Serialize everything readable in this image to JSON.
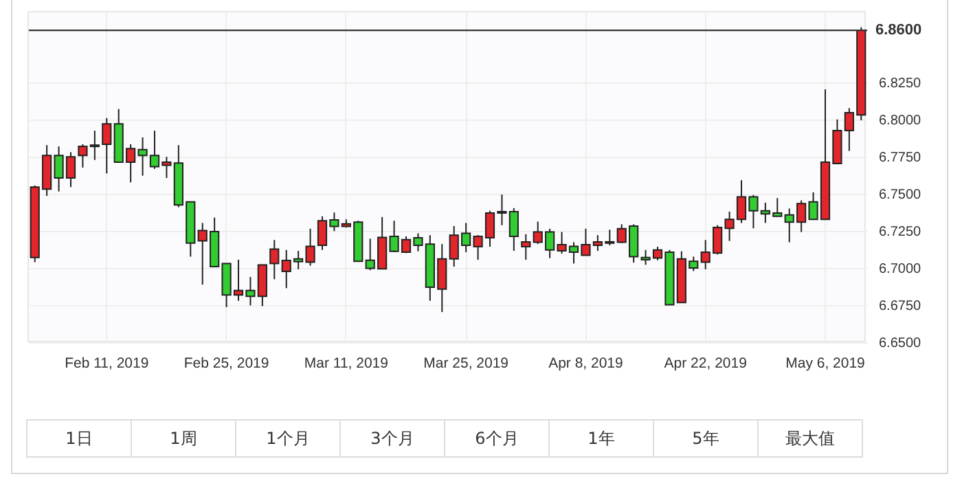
{
  "chart_data": {
    "type": "candlestick",
    "categories": [
      null,
      null,
      null,
      null,
      null,
      null,
      "Feb 11, 2019",
      null,
      null,
      null,
      null,
      null,
      null,
      null,
      null,
      null,
      "Feb 25, 2019",
      null,
      null,
      null,
      null,
      null,
      null,
      null,
      null,
      null,
      "Mar 11, 2019",
      null,
      null,
      null,
      null,
      null,
      null,
      null,
      null,
      null,
      "Mar 25, 2019",
      null,
      null,
      null,
      null,
      null,
      null,
      null,
      null,
      null,
      "Apr 8, 2019",
      null,
      null,
      null,
      null,
      null,
      null,
      null,
      null,
      null,
      "Apr 22, 2019",
      null,
      null,
      null,
      null,
      null,
      null,
      null,
      null,
      null,
      "May 6, 2019",
      null,
      null,
      null
    ],
    "ohlc": [
      [
        6.707,
        6.7555,
        6.7039,
        6.7545
      ],
      [
        6.753,
        6.7827,
        6.7485,
        6.7757
      ],
      [
        6.7757,
        6.7818,
        6.7515,
        6.7606
      ],
      [
        6.7606,
        6.7779,
        6.7545,
        6.7748
      ],
      [
        6.7757,
        6.7833,
        6.7676,
        6.7818
      ],
      [
        6.7818,
        6.7924,
        6.7727,
        6.7827
      ],
      [
        6.7833,
        6.8009,
        6.7636,
        6.797
      ],
      [
        6.797,
        6.807,
        6.7712,
        6.7712
      ],
      [
        6.7712,
        6.7833,
        6.7576,
        6.7803
      ],
      [
        6.7797,
        6.7879,
        6.7621,
        6.7757
      ],
      [
        6.7757,
        6.7924,
        6.7667,
        6.7682
      ],
      [
        6.7691,
        6.7748,
        6.7606,
        6.7712
      ],
      [
        6.7706,
        6.7827,
        6.7409,
        6.7424
      ],
      [
        6.7445,
        6.7445,
        6.7076,
        6.7167
      ],
      [
        6.7182,
        6.7303,
        6.6888,
        6.7252
      ],
      [
        6.7245,
        6.7339,
        6.7009,
        6.7009
      ],
      [
        6.703,
        6.703,
        6.6736,
        6.6818
      ],
      [
        6.6818,
        6.7055,
        6.6779,
        6.6848
      ],
      [
        6.6848,
        6.6939,
        6.6748,
        6.6809
      ],
      [
        6.6809,
        6.7021,
        6.6743,
        6.7021
      ],
      [
        6.703,
        6.7188,
        6.6924,
        6.7127
      ],
      [
        6.6976,
        6.7121,
        6.6864,
        6.7051
      ],
      [
        6.7061,
        6.7115,
        6.6991,
        6.7043
      ],
      [
        6.7039,
        6.7264,
        6.7015,
        6.7145
      ],
      [
        6.7152,
        6.7348,
        6.7121,
        6.7318
      ],
      [
        6.7324,
        6.7373,
        6.7248,
        6.7279
      ],
      [
        6.7279,
        6.7327,
        6.7273,
        6.7297
      ],
      [
        6.7309,
        6.7318,
        6.7045,
        6.7045
      ],
      [
        6.7052,
        6.7197,
        6.6985,
        6.6997
      ],
      [
        6.6994,
        6.7343,
        6.6991,
        6.7206
      ],
      [
        6.7212,
        6.7318,
        6.7106,
        6.7112
      ],
      [
        6.7106,
        6.7212,
        6.71,
        6.7191
      ],
      [
        6.7203,
        6.7233,
        6.7112,
        6.7152
      ],
      [
        6.7161,
        6.7221,
        6.6779,
        6.687
      ],
      [
        6.6857,
        6.7161,
        6.6703,
        6.7061
      ],
      [
        6.7061,
        6.7282,
        6.7009,
        6.7221
      ],
      [
        6.7233,
        6.7303,
        6.7106,
        6.7152
      ],
      [
        6.7143,
        6.7221,
        6.7055,
        6.7212
      ],
      [
        6.7203,
        6.7385,
        6.7143,
        6.737
      ],
      [
        6.737,
        6.7494,
        6.7288,
        6.7379
      ],
      [
        6.7379,
        6.7403,
        6.7115,
        6.7212
      ],
      [
        6.7143,
        6.7227,
        6.7055,
        6.7176
      ],
      [
        6.7173,
        6.7312,
        6.7161,
        6.7242
      ],
      [
        6.7242,
        6.7264,
        6.7066,
        6.7121
      ],
      [
        6.7115,
        6.7242,
        6.7097,
        6.7157
      ],
      [
        6.7145,
        6.7173,
        6.703,
        6.7106
      ],
      [
        6.7085,
        6.7264,
        6.7085,
        6.7157
      ],
      [
        6.7152,
        6.7221,
        6.7115,
        6.7176
      ],
      [
        6.7167,
        6.7257,
        6.7152,
        6.7176
      ],
      [
        6.7173,
        6.7294,
        6.7167,
        6.7264
      ],
      [
        6.7282,
        6.7294,
        6.7036,
        6.7076
      ],
      [
        6.707,
        6.7121,
        6.7021,
        6.7055
      ],
      [
        6.7067,
        6.7143,
        6.7052,
        6.7121
      ],
      [
        6.7106,
        6.7121,
        6.6752,
        6.6752
      ],
      [
        6.6767,
        6.7112,
        6.6767,
        6.7061
      ],
      [
        6.7045,
        6.7076,
        6.6979,
        6.7
      ],
      [
        6.7039,
        6.7188,
        6.6991,
        6.7106
      ],
      [
        6.71,
        6.7288,
        6.7091,
        6.7273
      ],
      [
        6.7267,
        6.7379,
        6.7182,
        6.7327
      ],
      [
        6.7327,
        6.7591,
        6.7303,
        6.7479
      ],
      [
        6.7479,
        6.7491,
        6.7267,
        6.7385
      ],
      [
        6.7385,
        6.7439,
        6.7303,
        6.7364
      ],
      [
        6.737,
        6.747,
        6.7348,
        6.7348
      ],
      [
        6.7357,
        6.74,
        6.7173,
        6.7309
      ],
      [
        6.7309,
        6.7455,
        6.7242,
        6.7433
      ],
      [
        6.7445,
        6.7509,
        6.7327,
        6.7327
      ],
      [
        6.7327,
        6.8203,
        6.7327,
        6.7712
      ],
      [
        6.7703,
        6.8,
        6.7703,
        6.7925
      ],
      [
        6.7925,
        6.8076,
        6.7788,
        6.8045
      ],
      [
        6.803,
        6.862,
        6.7994,
        6.86
      ]
    ],
    "colors": [
      "#e3262b",
      "#e3262b",
      "#33cc33",
      "#e3262b",
      "#e3262b",
      "#e3262b",
      "#e3262b",
      "#33cc33",
      "#e3262b",
      "#33cc33",
      "#33cc33",
      "#e3262b",
      "#33cc33",
      "#33cc33",
      "#e3262b",
      "#33cc33",
      "#33cc33",
      "#e3262b",
      "#33cc33",
      "#e3262b",
      "#e3262b",
      "#e3262b",
      "#33cc33",
      "#e3262b",
      "#e3262b",
      "#33cc33",
      "#e3262b",
      "#33cc33",
      "#33cc33",
      "#e3262b",
      "#33cc33",
      "#e3262b",
      "#33cc33",
      "#33cc33",
      "#e3262b",
      "#e3262b",
      "#33cc33",
      "#e3262b",
      "#e3262b",
      "#e3262b",
      "#33cc33",
      "#e3262b",
      "#e3262b",
      "#33cc33",
      "#e3262b",
      "#33cc33",
      "#e3262b",
      "#e3262b",
      "#e3262b",
      "#e3262b",
      "#33cc33",
      "#33cc33",
      "#e3262b",
      "#33cc33",
      "#e3262b",
      "#33cc33",
      "#e3262b",
      "#e3262b",
      "#e3262b",
      "#e3262b",
      "#33cc33",
      "#33cc33",
      "#33cc33",
      "#33cc33",
      "#e3262b",
      "#33cc33",
      "#e3262b",
      "#e3262b",
      "#e3262b",
      "#e3262b"
    ],
    "ylim": [
      6.65,
      6.873
    ],
    "yticks": [
      {
        "value": 6.65,
        "label": "6.6500"
      },
      {
        "value": 6.675,
        "label": "6.6750"
      },
      {
        "value": 6.7,
        "label": "6.7000"
      },
      {
        "value": 6.725,
        "label": "6.7250"
      },
      {
        "value": 6.75,
        "label": "6.7500"
      },
      {
        "value": 6.775,
        "label": "6.7750"
      },
      {
        "value": 6.8,
        "label": "6.8000"
      },
      {
        "value": 6.825,
        "label": "6.8250"
      }
    ],
    "ref_lines": [
      {
        "axis": "y",
        "value": 6.86,
        "label": "6.8600",
        "color": "#333333"
      }
    ],
    "grid": true,
    "annotations": [
      "1日",
      "1周",
      "1个月",
      "3个月",
      "6个月",
      "1年",
      "5年",
      "最大值"
    ]
  }
}
